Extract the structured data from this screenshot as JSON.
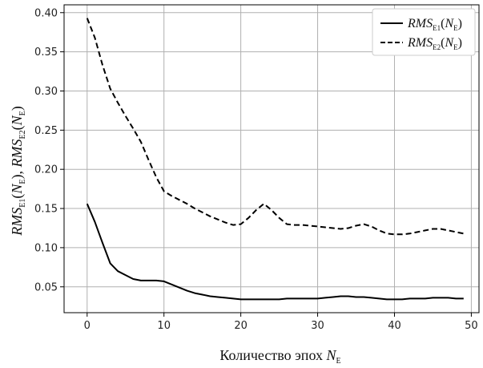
{
  "chart_data": {
    "type": "line",
    "title": "",
    "xlabel": {
      "main": "Количество эпох ",
      "symbol": "N",
      "sub": "E"
    },
    "ylabel": [
      {
        "base": "RMS",
        "sub": "E1",
        "arg": "N",
        "argsub": "E"
      },
      {
        "base": "RMS",
        "sub": "E2",
        "arg": "N",
        "argsub": "E"
      }
    ],
    "xlim": [
      -3,
      51
    ],
    "ylim": [
      0.017,
      0.41
    ],
    "xticks": [
      0,
      10,
      20,
      30,
      40,
      50
    ],
    "yticks": [
      0.05,
      0.1,
      0.15,
      0.2,
      0.25,
      0.3,
      0.35,
      0.4
    ],
    "xtick_labels": [
      "0",
      "10",
      "20",
      "30",
      "40",
      "50"
    ],
    "ytick_labels": [
      "0.05",
      "0.10",
      "0.15",
      "0.20",
      "0.25",
      "0.30",
      "0.35",
      "0.40"
    ],
    "grid": true,
    "legend_position": "top-right",
    "series": [
      {
        "legend": {
          "base": "RMS",
          "sub": "E1",
          "arg": "N",
          "argsub": "E"
        },
        "style": "solid",
        "color": "#000000",
        "x": [
          0,
          1,
          2,
          3,
          4,
          5,
          6,
          7,
          8,
          9,
          10,
          11,
          12,
          13,
          14,
          15,
          16,
          17,
          18,
          19,
          20,
          21,
          22,
          23,
          24,
          25,
          26,
          27,
          28,
          29,
          30,
          31,
          32,
          33,
          34,
          35,
          36,
          37,
          38,
          39,
          40,
          41,
          42,
          43,
          44,
          45,
          46,
          47,
          48,
          49
        ],
        "y": [
          0.156,
          0.133,
          0.106,
          0.08,
          0.07,
          0.065,
          0.06,
          0.058,
          0.058,
          0.058,
          0.057,
          0.053,
          0.049,
          0.045,
          0.042,
          0.04,
          0.038,
          0.037,
          0.036,
          0.035,
          0.034,
          0.034,
          0.034,
          0.034,
          0.034,
          0.034,
          0.035,
          0.035,
          0.035,
          0.035,
          0.035,
          0.036,
          0.037,
          0.038,
          0.038,
          0.037,
          0.037,
          0.036,
          0.035,
          0.034,
          0.034,
          0.034,
          0.035,
          0.035,
          0.035,
          0.036,
          0.036,
          0.036,
          0.035,
          0.035
        ]
      },
      {
        "legend": {
          "base": "RMS",
          "sub": "E2",
          "arg": "N",
          "argsub": "E"
        },
        "style": "dashed",
        "color": "#000000",
        "x": [
          0,
          1,
          2,
          3,
          4,
          5,
          6,
          7,
          8,
          9,
          10,
          11,
          12,
          13,
          14,
          15,
          16,
          17,
          18,
          19,
          20,
          21,
          22,
          23,
          24,
          25,
          26,
          27,
          28,
          29,
          30,
          31,
          32,
          33,
          34,
          35,
          36,
          37,
          38,
          39,
          40,
          41,
          42,
          43,
          44,
          45,
          46,
          47,
          48,
          49
        ],
        "y": [
          0.393,
          0.368,
          0.333,
          0.303,
          0.285,
          0.268,
          0.252,
          0.235,
          0.212,
          0.19,
          0.172,
          0.166,
          0.161,
          0.156,
          0.15,
          0.145,
          0.14,
          0.136,
          0.132,
          0.129,
          0.13,
          0.138,
          0.148,
          0.156,
          0.148,
          0.138,
          0.13,
          0.129,
          0.129,
          0.128,
          0.127,
          0.126,
          0.125,
          0.124,
          0.125,
          0.128,
          0.13,
          0.127,
          0.122,
          0.118,
          0.117,
          0.117,
          0.118,
          0.12,
          0.122,
          0.124,
          0.124,
          0.122,
          0.12,
          0.118
        ]
      }
    ]
  }
}
